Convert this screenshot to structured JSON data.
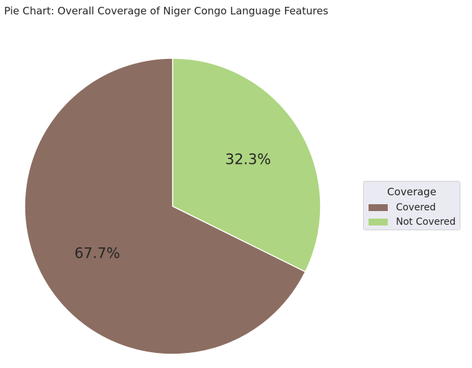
{
  "chart_data": {
    "type": "pie",
    "title": "Pie Chart: Overall Coverage of Niger Congo Language Features",
    "slices": [
      {
        "label": "Covered",
        "value": 67.7,
        "display": "67.7%",
        "color": "#8c6d62"
      },
      {
        "label": "Not Covered",
        "value": 32.3,
        "display": "32.3%",
        "color": "#aed581"
      }
    ],
    "start_angle_from_top_deg": 0,
    "direction": "clockwise-from-top for Not Covered",
    "legend": {
      "title": "Coverage",
      "placement": "right",
      "items": [
        "Covered",
        "Not Covered"
      ]
    }
  }
}
